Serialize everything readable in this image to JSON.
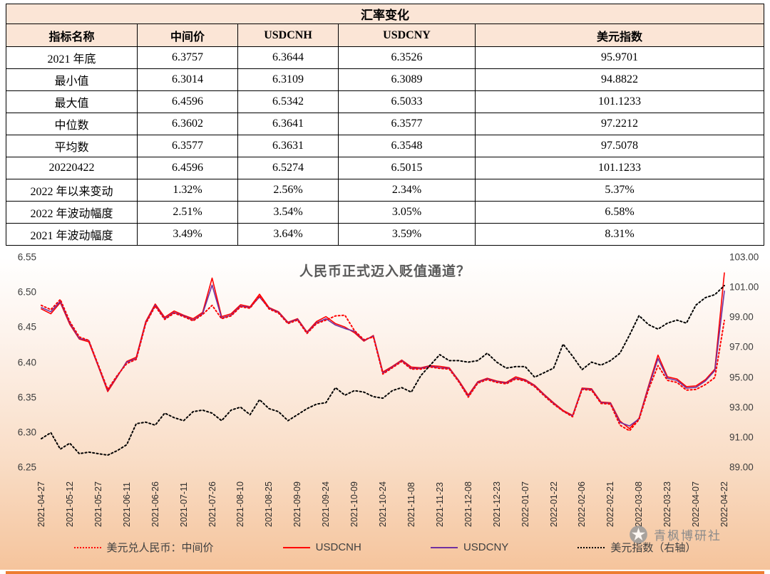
{
  "table": {
    "title": "汇率变化",
    "headers": [
      "指标名称",
      "中间价",
      "USDCNH",
      "USDCNY",
      "美元指数"
    ],
    "rows": [
      [
        "2021 年底",
        "6.3757",
        "6.3644",
        "6.3526",
        "95.9701"
      ],
      [
        "最小值",
        "6.3014",
        "6.3109",
        "6.3089",
        "94.8822"
      ],
      [
        "最大值",
        "6.4596",
        "6.5342",
        "6.5033",
        "101.1233"
      ],
      [
        "中位数",
        "6.3602",
        "6.3641",
        "6.3577",
        "97.2212"
      ],
      [
        "平均数",
        "6.3577",
        "6.3631",
        "6.3548",
        "97.5078"
      ],
      [
        "20220422",
        "6.4596",
        "6.5274",
        "6.5015",
        "101.1233"
      ],
      [
        "2022 年以来变动",
        "1.32%",
        "2.56%",
        "2.34%",
        "5.37%"
      ],
      [
        "2022 年波动幅度",
        "2.51%",
        "3.54%",
        "3.05%",
        "6.58%"
      ],
      [
        "2021 年波动幅度",
        "3.49%",
        "3.64%",
        "3.59%",
        "8.31%"
      ]
    ]
  },
  "chart_data": {
    "type": "line",
    "title": "人民币正式迈入贬值通道？",
    "grid": false,
    "legend_position": "bottom",
    "left_axis": {
      "min": 6.25,
      "max": 6.55,
      "ticks": [
        "6.55",
        "6.50",
        "6.45",
        "6.40",
        "6.35",
        "6.30",
        "6.25"
      ]
    },
    "right_axis": {
      "min": 89,
      "max": 103,
      "ticks": [
        "103.00",
        "101.00",
        "99.00",
        "97.00",
        "95.00",
        "93.00",
        "91.00",
        "89.00"
      ]
    },
    "x_labels": [
      "2021-04-27",
      "2021-05-12",
      "2021-05-27",
      "2021-06-11",
      "2021-06-26",
      "2021-07-11",
      "2021-07-26",
      "2021-08-10",
      "2021-08-25",
      "2021-09-09",
      "2021-09-24",
      "2021-10-09",
      "2021-10-24",
      "2021-11-08",
      "2021-11-23",
      "2021-12-08",
      "2021-12-23",
      "2022-01-07",
      "2022-01-22",
      "2022-02-06",
      "2022-02-21",
      "2022-03-08",
      "2022-03-23",
      "2022-04-07",
      "2022-04-22"
    ],
    "series": [
      {
        "name": "美元兑人民币：中间价",
        "axis": "left",
        "color": "#ff0000",
        "dash": "2 3.2",
        "width": 2,
        "values": [
          6.481,
          6.4749,
          6.4895,
          6.458,
          6.436,
          6.431,
          6.396,
          6.361,
          6.381,
          6.398,
          6.404,
          6.455,
          6.48,
          6.461,
          6.47,
          6.465,
          6.459,
          6.468,
          6.481,
          6.462,
          6.466,
          6.479,
          6.477,
          6.495,
          6.476,
          6.47,
          6.455,
          6.46,
          6.441,
          6.455,
          6.46,
          6.466,
          6.467,
          6.445,
          6.432,
          6.436,
          6.383,
          6.392,
          6.401,
          6.39,
          6.39,
          6.393,
          6.391,
          6.39,
          6.372,
          6.35,
          6.37,
          6.375,
          6.371,
          6.369,
          6.376,
          6.373,
          6.365,
          6.352,
          6.34,
          6.33,
          6.322,
          6.361,
          6.36,
          6.341,
          6.34,
          6.31,
          6.302,
          6.318,
          6.361,
          6.395,
          6.374,
          6.371,
          6.36,
          6.361,
          6.368,
          6.378,
          6.4596
        ]
      },
      {
        "name": "USDCNH",
        "axis": "left",
        "color": "#ff0000",
        "dash": "",
        "width": 1.6,
        "values": [
          6.476,
          6.469,
          6.485,
          6.454,
          6.433,
          6.429,
          6.394,
          6.358,
          6.379,
          6.401,
          6.407,
          6.458,
          6.483,
          6.464,
          6.473,
          6.467,
          6.462,
          6.471,
          6.52,
          6.465,
          6.469,
          6.482,
          6.479,
          6.497,
          6.478,
          6.472,
          6.457,
          6.462,
          6.443,
          6.458,
          6.465,
          6.455,
          6.45,
          6.442,
          6.43,
          6.438,
          6.386,
          6.394,
          6.403,
          6.393,
          6.392,
          6.395,
          6.394,
          6.392,
          6.374,
          6.353,
          6.372,
          6.377,
          6.373,
          6.371,
          6.379,
          6.375,
          6.367,
          6.354,
          6.342,
          6.331,
          6.324,
          6.363,
          6.362,
          6.343,
          6.342,
          6.316,
          6.305,
          6.32,
          6.366,
          6.41,
          6.379,
          6.376,
          6.365,
          6.366,
          6.375,
          6.39,
          6.5274
        ]
      },
      {
        "name": "USDCNY",
        "axis": "left",
        "color": "#7030a0",
        "dash": "",
        "width": 1.6,
        "values": [
          6.478,
          6.472,
          6.487,
          6.456,
          6.434,
          6.431,
          6.395,
          6.36,
          6.38,
          6.4,
          6.405,
          6.456,
          6.481,
          6.462,
          6.471,
          6.466,
          6.46,
          6.469,
          6.51,
          6.463,
          6.467,
          6.48,
          6.478,
          6.493,
          6.477,
          6.471,
          6.456,
          6.461,
          6.442,
          6.456,
          6.462,
          6.453,
          6.448,
          6.444,
          6.431,
          6.437,
          6.384,
          6.393,
          6.402,
          6.391,
          6.391,
          6.394,
          6.392,
          6.391,
          6.373,
          6.351,
          6.371,
          6.376,
          6.372,
          6.37,
          6.377,
          6.374,
          6.366,
          6.353,
          6.341,
          6.33,
          6.323,
          6.362,
          6.361,
          6.342,
          6.341,
          6.314,
          6.3089,
          6.319,
          6.364,
          6.405,
          6.377,
          6.374,
          6.363,
          6.364,
          6.373,
          6.388,
          6.5015
        ]
      },
      {
        "name": "美元指数（右轴）",
        "axis": "right",
        "color": "#000000",
        "dash": "2.2 3.2",
        "width": 2,
        "values": [
          90.9,
          91.3,
          90.2,
          90.6,
          89.9,
          90.0,
          89.9,
          89.8,
          90.1,
          90.5,
          91.9,
          92.0,
          91.8,
          92.6,
          92.3,
          92.1,
          92.7,
          92.8,
          92.6,
          92.1,
          92.8,
          93.0,
          92.5,
          93.5,
          92.9,
          92.7,
          92.1,
          92.5,
          92.9,
          93.2,
          93.3,
          94.3,
          93.8,
          94.1,
          94.0,
          93.7,
          93.6,
          94.1,
          94.3,
          94.0,
          95.1,
          95.8,
          96.5,
          96.1,
          96.1,
          96.0,
          96.1,
          96.6,
          96.0,
          95.6,
          95.7,
          95.7,
          95.0,
          95.3,
          95.6,
          97.2,
          96.4,
          95.5,
          96.0,
          95.8,
          96.1,
          96.6,
          97.8,
          99.1,
          98.5,
          98.2,
          98.6,
          98.8,
          98.6,
          99.8,
          100.3,
          100.5,
          101.1
        ]
      }
    ]
  },
  "watermark": {
    "text": "青枫博研社"
  },
  "colors": {
    "accent_line": "#ed7d31",
    "table_header_bg": "#fbe5d6",
    "title_color": "#595959",
    "red": "#ff0000",
    "purple": "#7030a0"
  }
}
